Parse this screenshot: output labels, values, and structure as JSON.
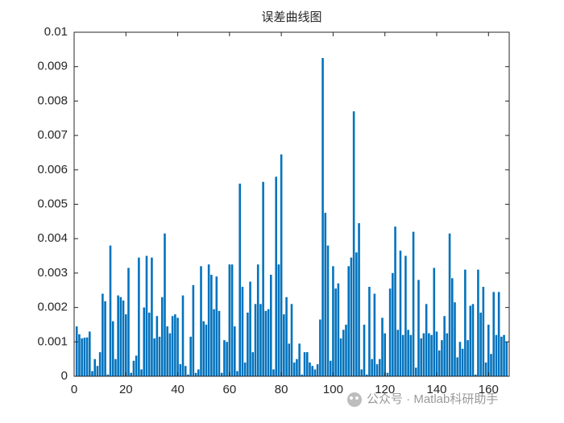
{
  "chart_data": {
    "type": "bar",
    "title": "误差曲线图",
    "x": [
      1,
      2,
      3,
      4,
      5,
      6,
      7,
      8,
      9,
      10,
      11,
      12,
      13,
      14,
      15,
      16,
      17,
      18,
      19,
      20,
      21,
      22,
      23,
      24,
      25,
      26,
      27,
      28,
      29,
      30,
      31,
      32,
      33,
      34,
      35,
      36,
      37,
      38,
      39,
      40,
      41,
      42,
      43,
      44,
      45,
      46,
      47,
      48,
      49,
      50,
      51,
      52,
      53,
      54,
      55,
      56,
      57,
      58,
      59,
      60,
      61,
      62,
      63,
      64,
      65,
      66,
      67,
      68,
      69,
      70,
      71,
      72,
      73,
      74,
      75,
      76,
      77,
      78,
      79,
      80,
      81,
      82,
      83,
      84,
      85,
      86,
      87,
      88,
      89,
      90,
      91,
      92,
      93,
      94,
      95,
      96,
      97,
      98,
      99,
      100,
      101,
      102,
      103,
      104,
      105,
      106,
      107,
      108,
      109,
      110,
      111,
      112,
      113,
      114,
      115,
      116,
      117,
      118,
      119,
      120,
      121,
      122,
      123,
      124,
      125,
      126,
      127,
      128,
      129,
      130,
      131,
      132,
      133,
      134,
      135,
      136,
      137,
      138,
      139,
      140,
      141,
      142,
      143,
      144,
      145,
      146,
      147,
      148,
      149,
      150,
      151,
      152,
      153,
      154,
      155,
      156,
      157,
      158,
      159,
      160,
      161,
      162,
      163,
      164,
      165,
      166,
      167
    ],
    "values": [
      0.00145,
      0.00122,
      0.0011,
      0.00112,
      0.00113,
      0.0013,
      0.00015,
      0.0005,
      0.0003,
      0.0007,
      0.0024,
      0.00218,
      5e-05,
      0.0038,
      0.0016,
      0.0005,
      0.00235,
      0.0023,
      0.0022,
      0.0018,
      0.00315,
      0.0001,
      0.00045,
      0.0006,
      0.00345,
      0.0002,
      0.002,
      0.0035,
      0.00185,
      0.00345,
      0.0011,
      0.00175,
      0.00115,
      0.0023,
      0.00415,
      0.00145,
      0.00125,
      0.00175,
      0.0018,
      0.0017,
      0.00035,
      0.00235,
      0.0003,
      5e-05,
      0.00115,
      0.00265,
      0.0001,
      0.0002,
      0.0032,
      0.0016,
      0.0015,
      0.00325,
      0.00295,
      0.00195,
      0.0029,
      0.0019,
      0.0001,
      0.00105,
      0.001,
      0.00325,
      0.00325,
      0.00145,
      0.00015,
      0.0056,
      0.0026,
      0.0004,
      0.00185,
      0.00275,
      0.0007,
      0.0021,
      0.00325,
      0.0021,
      0.00565,
      0.0019,
      0.00195,
      0.00295,
      0.0002,
      0.0058,
      0.00325,
      0.00645,
      0.0018,
      0.0023,
      0.00095,
      0.0021,
      0.0004,
      0.0005,
      0.00095,
      5e-05,
      0.0007,
      0.0007,
      0.0004,
      0.0003,
      0.0002,
      0.00035,
      0.00165,
      0.00925,
      0.00475,
      0.0038,
      0.00045,
      0.0032,
      0.00255,
      0.0027,
      0.0011,
      0.00135,
      0.0015,
      0.0032,
      0.00345,
      0.0077,
      0.0036,
      0.00445,
      0.0002,
      0.0015,
      5e-05,
      0.0026,
      0.0005,
      0.0024,
      0.00035,
      0.0005,
      0.0017,
      0.00125,
      0.0001,
      0.00255,
      0.003,
      0.00435,
      0.00135,
      0.00365,
      0.0012,
      0.0035,
      0.00135,
      0.0012,
      0.0042,
      0.00025,
      0.0028,
      0.0011,
      0.00125,
      0.0021,
      0.00125,
      0.0012,
      0.00315,
      0.0013,
      0.00075,
      0.00105,
      0.00175,
      0.00125,
      0.00415,
      0.00285,
      0.00215,
      0.00055,
      0.001,
      0.0008,
      0.0031,
      0.00105,
      0.00205,
      0.0021,
      5e-05,
      0.0031,
      0.00185,
      0.0026,
      0.0004,
      0.0015,
      0.00065,
      0.00245,
      0.0012,
      0.00245,
      0.00115,
      0.0012,
      0.001
    ],
    "color": "#0072bd",
    "xlim": [
      0,
      168
    ],
    "xticks": [
      0,
      20,
      40,
      60,
      80,
      100,
      120,
      140,
      160
    ],
    "ylim": [
      0,
      0.01
    ],
    "yticks": [
      0,
      0.001,
      0.002,
      0.003,
      0.004,
      0.005,
      0.006,
      0.007,
      0.008,
      0.009,
      0.01
    ]
  },
  "watermark": "公众号 · Matlab科研助手"
}
